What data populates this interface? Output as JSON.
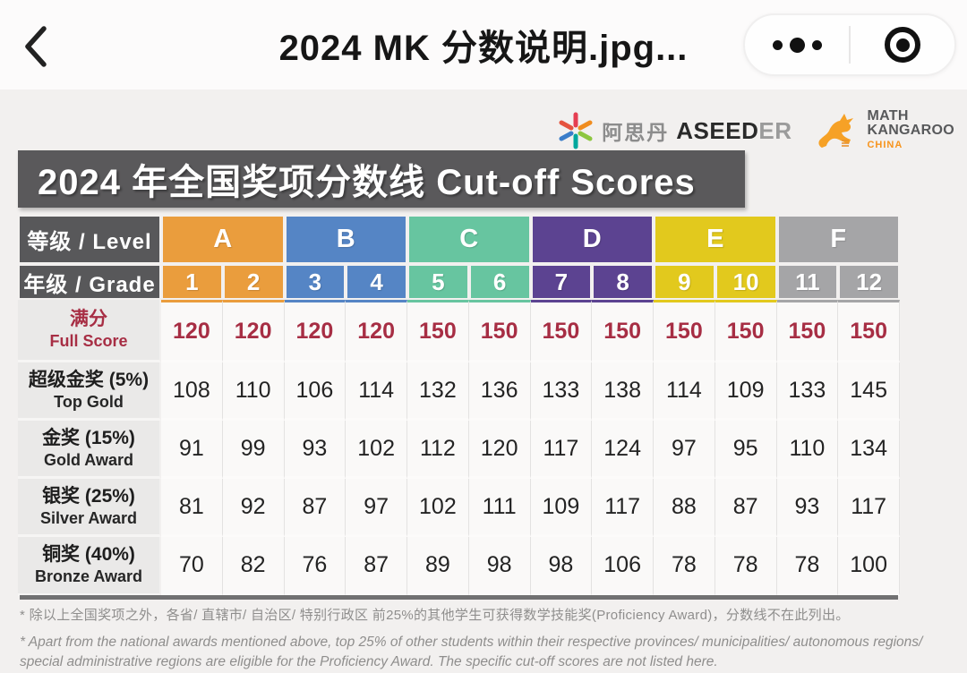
{
  "nav": {
    "title": "2024 MK 分数说明.jpg...",
    "back_icon": "chevron-left",
    "menu_icon": "three-dots-menu",
    "close_icon": "target-circle"
  },
  "logos": {
    "aseeder_cn": "阿思丹",
    "aseeder_en_bold": "ASEED",
    "aseeder_en_light": "ER",
    "mk_line1": "MATH",
    "mk_line2": "KANGAROO",
    "mk_line3": "CHINA"
  },
  "banner": {
    "title": "2024 年全国奖项分数线 Cut-off Scores",
    "bg_color": "#5A595B"
  },
  "table": {
    "level_header": "等级 / Level",
    "grade_header": "年级 / Grade",
    "levels": [
      {
        "label": "A",
        "color": "#EA9D3D",
        "grades": [
          "1",
          "2"
        ]
      },
      {
        "label": "B",
        "color": "#5585C5",
        "grades": [
          "3",
          "4"
        ]
      },
      {
        "label": "C",
        "color": "#67C5A0",
        "grades": [
          "5",
          "6"
        ]
      },
      {
        "label": "D",
        "color": "#5C4391",
        "grades": [
          "7",
          "8"
        ]
      },
      {
        "label": "E",
        "color": "#E2C91D",
        "grades": [
          "9",
          "10"
        ]
      },
      {
        "label": "F",
        "color": "#A5A5A7",
        "grades": [
          "11",
          "12"
        ]
      }
    ],
    "full_score_color": "#A72E44",
    "rows": [
      {
        "zh": "满分",
        "en": "Full Score",
        "highlight": true,
        "values": [
          120,
          120,
          120,
          120,
          150,
          150,
          150,
          150,
          150,
          150,
          150,
          150
        ]
      },
      {
        "zh": "超级金奖 (5%)",
        "en": "Top Gold",
        "highlight": false,
        "values": [
          108,
          110,
          106,
          114,
          132,
          136,
          133,
          138,
          114,
          109,
          133,
          145
        ]
      },
      {
        "zh": "金奖 (15%)",
        "en": "Gold Award",
        "highlight": false,
        "values": [
          91,
          99,
          93,
          102,
          112,
          120,
          117,
          124,
          97,
          95,
          110,
          134
        ]
      },
      {
        "zh": "银奖 (25%)",
        "en": "Silver Award",
        "highlight": false,
        "values": [
          81,
          92,
          87,
          97,
          102,
          111,
          109,
          117,
          88,
          87,
          93,
          117
        ]
      },
      {
        "zh": "铜奖 (40%)",
        "en": "Bronze Award",
        "highlight": false,
        "values": [
          70,
          82,
          76,
          87,
          89,
          98,
          98,
          106,
          78,
          78,
          78,
          100
        ]
      }
    ]
  },
  "footnotes": {
    "zh": "* 除以上全国奖项之外，各省/ 直辖市/ 自治区/ 特别行政区 前25%的其他学生可获得数学技能奖(Proficiency Award)，分数线不在此列出。",
    "en": "* Apart from the national awards mentioned above, top 25% of other students within their respective provinces/ municipalities/ autonomous regions/ special administrative regions are eligible for the Proficiency Award. The specific cut-off scores are not listed here."
  }
}
